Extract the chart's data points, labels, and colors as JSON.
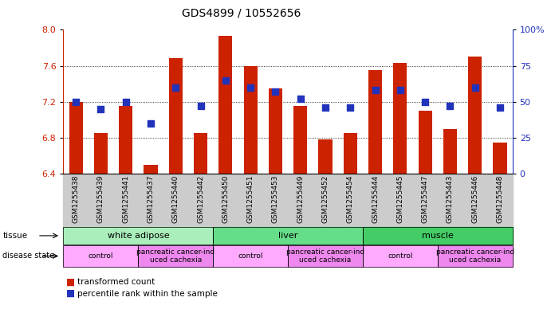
{
  "title": "GDS4899 / 10552656",
  "samples": [
    "GSM1255438",
    "GSM1255439",
    "GSM1255441",
    "GSM1255437",
    "GSM1255440",
    "GSM1255442",
    "GSM1255450",
    "GSM1255451",
    "GSM1255453",
    "GSM1255449",
    "GSM1255452",
    "GSM1255454",
    "GSM1255444",
    "GSM1255445",
    "GSM1255447",
    "GSM1255443",
    "GSM1255446",
    "GSM1255448"
  ],
  "bar_values": [
    7.2,
    6.85,
    7.15,
    6.5,
    7.68,
    6.85,
    7.93,
    7.6,
    7.35,
    7.15,
    6.78,
    6.85,
    7.55,
    7.63,
    7.1,
    6.9,
    7.7,
    6.75
  ],
  "blue_values": [
    50,
    45,
    50,
    35,
    60,
    47,
    65,
    60,
    57,
    52,
    46,
    46,
    58,
    58,
    50,
    47,
    60,
    46
  ],
  "ylim_left": [
    6.4,
    8.0
  ],
  "ylim_right": [
    0,
    100
  ],
  "yticks_left": [
    6.4,
    6.8,
    7.2,
    7.6,
    8.0
  ],
  "yticks_right": [
    0,
    25,
    50,
    75,
    100
  ],
  "grid_values": [
    6.8,
    7.2,
    7.6
  ],
  "bar_color": "#CC2200",
  "blue_color": "#2233BB",
  "tissue_groups": [
    {
      "label": "white adipose",
      "start": 0,
      "end": 6,
      "color": "#AAEEBB"
    },
    {
      "label": "liver",
      "start": 6,
      "end": 12,
      "color": "#66DD88"
    },
    {
      "label": "muscle",
      "start": 12,
      "end": 18,
      "color": "#44CC66"
    }
  ],
  "disease_groups": [
    {
      "label": "control",
      "start": 0,
      "end": 3,
      "color": "#FFAAFF"
    },
    {
      "label": "pancreatic cancer-ind\nuced cachexia",
      "start": 3,
      "end": 6,
      "color": "#EE88EE"
    },
    {
      "label": "control",
      "start": 6,
      "end": 9,
      "color": "#FFAAFF"
    },
    {
      "label": "pancreatic cancer-ind\nuced cachexia",
      "start": 9,
      "end": 12,
      "color": "#EE88EE"
    },
    {
      "label": "control",
      "start": 12,
      "end": 15,
      "color": "#FFAAFF"
    },
    {
      "label": "pancreatic cancer-ind\nuced cachexia",
      "start": 15,
      "end": 18,
      "color": "#EE88EE"
    }
  ],
  "bar_width": 0.55,
  "background_color": "#FFFFFF",
  "left_axis_color": "#CC2200",
  "right_axis_color": "#2233BB",
  "gray_bg": "#CCCCCC",
  "tissue_label_fontsize": 8,
  "disease_label_fontsize": 6.5,
  "tick_fontsize": 6.5,
  "title_fontsize": 10
}
